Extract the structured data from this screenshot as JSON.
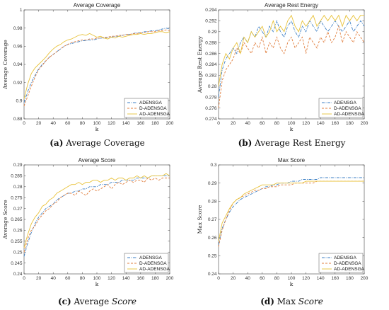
{
  "chart_data": [
    {
      "type": "line",
      "title": "Average Coverage",
      "xlabel": "k",
      "ylabel": "Average Coverage",
      "xlim": [
        0,
        200
      ],
      "ylim": [
        0.88,
        1.0
      ],
      "xticks": [
        "0",
        "20",
        "40",
        "60",
        "80",
        "100",
        "120",
        "140",
        "160",
        "180",
        "200"
      ],
      "yticks": [
        "0.88",
        "0.9",
        "0.92",
        "0.94",
        "0.96",
        "0.98",
        "1"
      ],
      "legend": "bottom-right",
      "x": [
        0,
        5,
        10,
        15,
        20,
        25,
        30,
        35,
        40,
        45,
        50,
        55,
        60,
        65,
        70,
        75,
        80,
        85,
        90,
        95,
        100,
        105,
        110,
        115,
        120,
        125,
        130,
        135,
        140,
        145,
        150,
        155,
        160,
        165,
        170,
        175,
        180,
        185,
        190,
        195,
        200
      ],
      "series": [
        {
          "name": "ADENSGA",
          "color": "#3a7ec4",
          "dash": "dashdot",
          "values": [
            0.898,
            0.91,
            0.92,
            0.928,
            0.935,
            0.94,
            0.944,
            0.948,
            0.951,
            0.954,
            0.957,
            0.96,
            0.962,
            0.963,
            0.964,
            0.965,
            0.966,
            0.966,
            0.967,
            0.967,
            0.968,
            0.969,
            0.969,
            0.97,
            0.97,
            0.971,
            0.971,
            0.972,
            0.973,
            0.973,
            0.974,
            0.975,
            0.975,
            0.976,
            0.976,
            0.977,
            0.977,
            0.978,
            0.979,
            0.98,
            0.979
          ]
        },
        {
          "name": "D-ADENSGA",
          "color": "#e07d3c",
          "dash": "dash",
          "values": [
            0.894,
            0.905,
            0.916,
            0.926,
            0.934,
            0.939,
            0.944,
            0.948,
            0.951,
            0.954,
            0.957,
            0.96,
            0.962,
            0.964,
            0.965,
            0.966,
            0.967,
            0.967,
            0.968,
            0.968,
            0.969,
            0.969,
            0.97,
            0.97,
            0.971,
            0.971,
            0.972,
            0.972,
            0.973,
            0.973,
            0.974,
            0.974,
            0.975,
            0.975,
            0.976,
            0.976,
            0.976,
            0.977,
            0.977,
            0.978,
            0.977
          ]
        },
        {
          "name": "AD-ADENSGA",
          "color": "#e8c23a",
          "dash": "solid",
          "values": [
            0.902,
            0.918,
            0.93,
            0.936,
            0.94,
            0.944,
            0.948,
            0.953,
            0.957,
            0.96,
            0.962,
            0.965,
            0.967,
            0.968,
            0.97,
            0.972,
            0.973,
            0.972,
            0.974,
            0.972,
            0.97,
            0.971,
            0.969,
            0.968,
            0.97,
            0.969,
            0.971,
            0.97,
            0.971,
            0.972,
            0.973,
            0.973,
            0.974,
            0.973,
            0.974,
            0.974,
            0.975,
            0.976,
            0.976,
            0.975,
            0.976
          ]
        }
      ]
    },
    {
      "type": "line",
      "title": "Average Rest Energy",
      "xlabel": "k",
      "ylabel": "Average Rest Energy",
      "xlim": [
        0,
        200
      ],
      "ylim": [
        0.274,
        0.294
      ],
      "xticks": [
        "0",
        "20",
        "40",
        "60",
        "80",
        "100",
        "120",
        "140",
        "160",
        "180",
        "200"
      ],
      "yticks": [
        "0.274",
        "0.276",
        "0.278",
        "0.28",
        "0.282",
        "0.284",
        "0.286",
        "0.288",
        "0.29",
        "0.292",
        "0.294"
      ],
      "legend": "bottom-right",
      "x": [
        0,
        5,
        10,
        15,
        20,
        25,
        30,
        35,
        40,
        45,
        50,
        55,
        60,
        65,
        70,
        75,
        80,
        85,
        90,
        95,
        100,
        105,
        110,
        115,
        120,
        125,
        130,
        135,
        140,
        145,
        150,
        155,
        160,
        165,
        170,
        175,
        180,
        185,
        190,
        195,
        200
      ],
      "series": [
        {
          "name": "ADENSGA",
          "color": "#3a7ec4",
          "dash": "dashdot",
          "values": [
            0.278,
            0.283,
            0.285,
            0.286,
            0.287,
            0.286,
            0.288,
            0.289,
            0.288,
            0.29,
            0.289,
            0.291,
            0.29,
            0.289,
            0.291,
            0.29,
            0.292,
            0.29,
            0.289,
            0.291,
            0.292,
            0.29,
            0.289,
            0.291,
            0.29,
            0.292,
            0.291,
            0.29,
            0.292,
            0.291,
            0.29,
            0.291,
            0.292,
            0.291,
            0.29,
            0.291,
            0.292,
            0.29,
            0.291,
            0.292,
            0.291
          ]
        },
        {
          "name": "D-ADENSGA",
          "color": "#e07d3c",
          "dash": "dash",
          "values": [
            0.276,
            0.281,
            0.283,
            0.284,
            0.285,
            0.287,
            0.286,
            0.288,
            0.287,
            0.286,
            0.288,
            0.287,
            0.289,
            0.286,
            0.288,
            0.287,
            0.289,
            0.287,
            0.286,
            0.288,
            0.289,
            0.287,
            0.288,
            0.289,
            0.286,
            0.289,
            0.288,
            0.287,
            0.289,
            0.288,
            0.29,
            0.288,
            0.289,
            0.291,
            0.288,
            0.29,
            0.289,
            0.288,
            0.29,
            0.289,
            0.288
          ]
        },
        {
          "name": "AD-ADENSGA",
          "color": "#e8c23a",
          "dash": "solid",
          "values": [
            0.28,
            0.284,
            0.286,
            0.285,
            0.287,
            0.288,
            0.286,
            0.289,
            0.288,
            0.29,
            0.289,
            0.29,
            0.291,
            0.289,
            0.29,
            0.292,
            0.29,
            0.291,
            0.29,
            0.292,
            0.293,
            0.291,
            0.29,
            0.292,
            0.291,
            0.292,
            0.293,
            0.291,
            0.292,
            0.293,
            0.292,
            0.293,
            0.292,
            0.293,
            0.291,
            0.293,
            0.292,
            0.293,
            0.292,
            0.293,
            0.293
          ]
        }
      ]
    },
    {
      "type": "line",
      "title": "Average Score",
      "xlabel": "k",
      "ylabel": "Average Score",
      "xlim": [
        0,
        200
      ],
      "ylim": [
        0.24,
        0.29
      ],
      "xticks": [
        "0",
        "20",
        "40",
        "60",
        "80",
        "100",
        "120",
        "140",
        "160",
        "180",
        "200"
      ],
      "yticks": [
        "0.24",
        "0.245",
        "0.25",
        "0.255",
        "0.26",
        "0.265",
        "0.27",
        "0.275",
        "0.28",
        "0.285",
        "0.29"
      ],
      "legend": "bottom-right",
      "x": [
        0,
        5,
        10,
        15,
        20,
        25,
        30,
        35,
        40,
        45,
        50,
        55,
        60,
        65,
        70,
        75,
        80,
        85,
        90,
        95,
        100,
        105,
        110,
        115,
        120,
        125,
        130,
        135,
        140,
        145,
        150,
        155,
        160,
        165,
        170,
        175,
        180,
        185,
        190,
        195,
        200
      ],
      "series": [
        {
          "name": "ADENSGA",
          "color": "#3a7ec4",
          "dash": "dashdot",
          "values": [
            0.248,
            0.254,
            0.259,
            0.263,
            0.266,
            0.268,
            0.27,
            0.271,
            0.272,
            0.274,
            0.275,
            0.276,
            0.277,
            0.277,
            0.278,
            0.278,
            0.279,
            0.279,
            0.28,
            0.28,
            0.28,
            0.281,
            0.281,
            0.281,
            0.282,
            0.282,
            0.282,
            0.283,
            0.283,
            0.283,
            0.283,
            0.284,
            0.284,
            0.284,
            0.284,
            0.285,
            0.285,
            0.285,
            0.285,
            0.285,
            0.285
          ]
        },
        {
          "name": "D-ADENSGA",
          "color": "#e07d3c",
          "dash": "dash",
          "values": [
            0.25,
            0.256,
            0.26,
            0.262,
            0.265,
            0.267,
            0.269,
            0.27,
            0.272,
            0.273,
            0.275,
            0.276,
            0.277,
            0.277,
            0.276,
            0.278,
            0.277,
            0.276,
            0.278,
            0.279,
            0.278,
            0.279,
            0.28,
            0.281,
            0.279,
            0.281,
            0.282,
            0.281,
            0.282,
            0.283,
            0.282,
            0.283,
            0.283,
            0.282,
            0.284,
            0.283,
            0.284,
            0.283,
            0.284,
            0.284,
            0.284
          ]
        },
        {
          "name": "AD-ADENSGA",
          "color": "#e8c23a",
          "dash": "solid",
          "values": [
            0.252,
            0.258,
            0.263,
            0.266,
            0.268,
            0.271,
            0.272,
            0.274,
            0.275,
            0.277,
            0.278,
            0.279,
            0.28,
            0.281,
            0.281,
            0.282,
            0.281,
            0.282,
            0.282,
            0.283,
            0.283,
            0.282,
            0.283,
            0.283,
            0.284,
            0.283,
            0.284,
            0.284,
            0.283,
            0.284,
            0.284,
            0.285,
            0.284,
            0.285,
            0.284,
            0.285,
            0.285,
            0.285,
            0.285,
            0.286,
            0.285
          ]
        }
      ]
    },
    {
      "type": "line",
      "title": "Max Score",
      "xlabel": "k",
      "ylabel": "Max Score",
      "xlim": [
        0,
        200
      ],
      "ylim": [
        0.24,
        0.3
      ],
      "xticks": [
        "0",
        "20",
        "40",
        "60",
        "80",
        "100",
        "120",
        "140",
        "160",
        "180",
        "200"
      ],
      "yticks": [
        "0.24",
        "0.25",
        "0.26",
        "0.27",
        "0.28",
        "0.29",
        "0.3"
      ],
      "legend": "bottom-right",
      "x": [
        0,
        5,
        10,
        15,
        20,
        25,
        30,
        35,
        40,
        45,
        50,
        55,
        60,
        65,
        70,
        75,
        80,
        85,
        90,
        95,
        100,
        105,
        110,
        115,
        120,
        125,
        130,
        135,
        140,
        145,
        150,
        155,
        160,
        165,
        170,
        175,
        180,
        185,
        190,
        195,
        200
      ],
      "series": [
        {
          "name": "ADENSGA",
          "color": "#3a7ec4",
          "dash": "dashdot",
          "values": [
            0.256,
            0.265,
            0.27,
            0.274,
            0.277,
            0.279,
            0.281,
            0.282,
            0.283,
            0.284,
            0.285,
            0.286,
            0.287,
            0.288,
            0.288,
            0.289,
            0.289,
            0.29,
            0.29,
            0.29,
            0.291,
            0.291,
            0.291,
            0.292,
            0.292,
            0.292,
            0.292,
            0.292,
            0.293,
            0.293,
            0.293,
            0.293,
            0.293,
            0.293,
            0.293,
            0.293,
            0.293,
            0.293,
            0.293,
            0.293,
            0.293
          ]
        },
        {
          "name": "D-ADENSGA",
          "color": "#e07d3c",
          "dash": "dash",
          "values": [
            0.255,
            0.264,
            0.27,
            0.275,
            0.279,
            0.281,
            0.282,
            0.283,
            0.284,
            0.285,
            0.286,
            0.286,
            0.287,
            0.287,
            0.288,
            0.288,
            0.288,
            0.289,
            0.289,
            0.289,
            0.289,
            0.29,
            0.29,
            0.29,
            0.29,
            0.29,
            0.29,
            0.291,
            0.291,
            0.291,
            0.291,
            0.291,
            0.291,
            0.291,
            0.291,
            0.291,
            0.291,
            0.291,
            0.291,
            0.291,
            0.291
          ]
        },
        {
          "name": "AD-ADENSGA",
          "color": "#e8c23a",
          "dash": "solid",
          "values": [
            0.258,
            0.268,
            0.272,
            0.276,
            0.279,
            0.281,
            0.282,
            0.284,
            0.285,
            0.286,
            0.287,
            0.288,
            0.289,
            0.289,
            0.289,
            0.289,
            0.29,
            0.29,
            0.29,
            0.29,
            0.29,
            0.29,
            0.29,
            0.29,
            0.291,
            0.291,
            0.291,
            0.291,
            0.291,
            0.291,
            0.291,
            0.291,
            0.291,
            0.291,
            0.291,
            0.291,
            0.291,
            0.291,
            0.291,
            0.291,
            0.291
          ]
        }
      ]
    }
  ],
  "captions": [
    {
      "tag": "(a)",
      "text": "Average Coverage",
      "italic": ""
    },
    {
      "tag": "(b)",
      "text": "Average Rest Energy",
      "italic": ""
    },
    {
      "tag": "(c)",
      "text": "Average ",
      "italic": "Score"
    },
    {
      "tag": "(d)",
      "text": "Max ",
      "italic": "Score"
    }
  ]
}
